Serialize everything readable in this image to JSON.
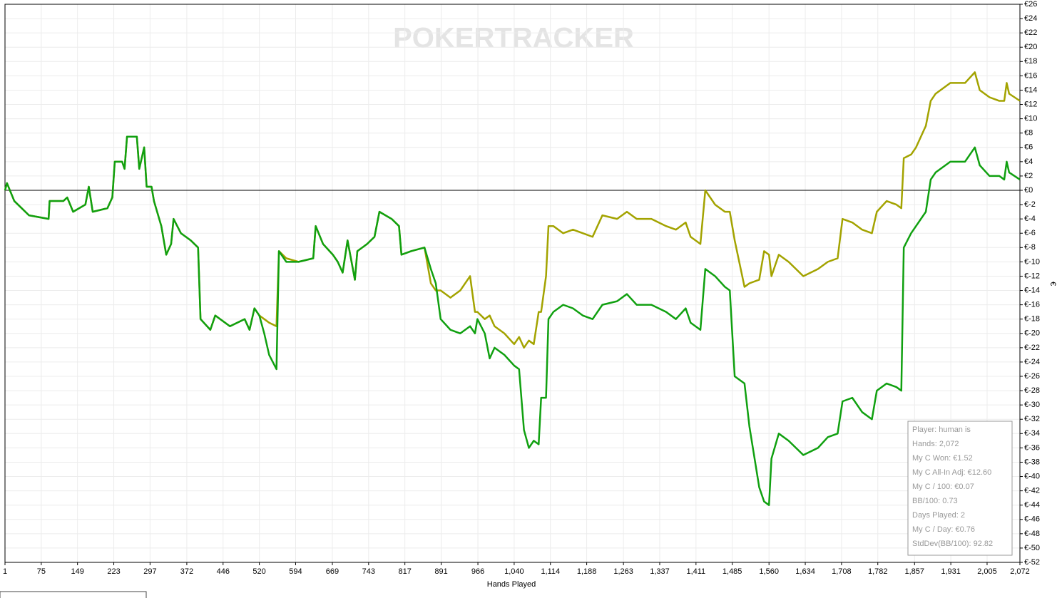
{
  "chart_data": {
    "type": "line",
    "watermark": "POKERTRACKER",
    "x_label": "Hands Played",
    "y_label": "€",
    "grid": true,
    "xlim": [
      1,
      2072
    ],
    "ylim": [
      -52,
      26
    ],
    "x": [
      1,
      5,
      20,
      50,
      90,
      92,
      120,
      128,
      140,
      165,
      172,
      180,
      210,
      220,
      225,
      240,
      245,
      250,
      270,
      275,
      285,
      290,
      300,
      305,
      320,
      330,
      340,
      345,
      360,
      380,
      395,
      400,
      420,
      430,
      460,
      490,
      500,
      510,
      520,
      530,
      540,
      555,
      560,
      575,
      600,
      630,
      635,
      650,
      670,
      680,
      690,
      700,
      715,
      720,
      740,
      755,
      765,
      790,
      805,
      810,
      830,
      857,
      870,
      880,
      890,
      910,
      930,
      950,
      960,
      965,
      980,
      990,
      1000,
      1020,
      1040,
      1050,
      1060,
      1070,
      1080,
      1090,
      1095,
      1105,
      1110,
      1120,
      1140,
      1160,
      1180,
      1200,
      1220,
      1250,
      1270,
      1290,
      1320,
      1350,
      1370,
      1390,
      1400,
      1420,
      1430,
      1450,
      1470,
      1480,
      1490,
      1510,
      1520,
      1540,
      1550,
      1560,
      1565,
      1580,
      1600,
      1630,
      1660,
      1680,
      1700,
      1710,
      1730,
      1750,
      1770,
      1780,
      1800,
      1820,
      1830,
      1835,
      1850,
      1860,
      1880,
      1890,
      1900,
      1930,
      1960,
      1980,
      1990,
      2010,
      2030,
      2040,
      2045,
      2050,
      2072
    ],
    "series": [
      {
        "color": "#a3a300",
        "values": [
          0,
          1,
          -1.5,
          -3.5,
          -4,
          -1.5,
          -1.5,
          -1,
          -3,
          -2,
          0.5,
          -3,
          -2.5,
          -1,
          4,
          4,
          3,
          7.5,
          7.5,
          3,
          6,
          0.5,
          0.5,
          -1.5,
          -5,
          -9,
          -7.5,
          -4,
          -6,
          -7,
          -8,
          -18,
          -19.5,
          -17.5,
          -19,
          -18,
          -19.5,
          -16.5,
          -17.5,
          -18,
          -18.5,
          -19,
          -8.5,
          -9.5,
          -10,
          -9.5,
          -5,
          -7.5,
          -9,
          -10,
          -11.5,
          -7,
          -12.5,
          -8.5,
          -7.5,
          -6.5,
          -3,
          -4,
          -5,
          -9,
          -8.5,
          -8,
          -13,
          -14,
          -14,
          -15,
          -14,
          -12,
          -17,
          -17,
          -18,
          -17.5,
          -19,
          -20,
          -21.5,
          -20.5,
          -22,
          -21,
          -21.5,
          -17,
          -17,
          -12,
          -5,
          -5,
          -6,
          -5.5,
          -6,
          -6.5,
          -3.5,
          -4,
          -3,
          -4,
          -4,
          -5,
          -5.5,
          -4.5,
          -6.5,
          -7.5,
          0,
          -2,
          -3,
          -3,
          -7,
          -13.5,
          -13,
          -12.5,
          -8.5,
          -9,
          -12,
          -9,
          -10,
          -12,
          -11,
          -10,
          -9.5,
          -4,
          -4.5,
          -5.5,
          -6,
          -3,
          -1.5,
          -2,
          -2.5,
          4.5,
          5,
          6,
          9,
          12.5,
          13.5,
          15,
          15,
          16.5,
          14,
          13,
          12.5,
          12.5,
          15,
          13.5,
          12.5
        ]
      },
      {
        "color": "#10a010",
        "values": [
          0,
          1,
          -1.5,
          -3.5,
          -4,
          -1.5,
          -1.5,
          -1,
          -3,
          -2,
          0.5,
          -3,
          -2.5,
          -1,
          4,
          4,
          3,
          7.5,
          7.5,
          3,
          6,
          0.5,
          0.5,
          -1.5,
          -5,
          -9,
          -7.5,
          -4,
          -6,
          -7,
          -8,
          -18,
          -19.5,
          -17.5,
          -19,
          -18,
          -19.5,
          -16.5,
          -17.5,
          -20,
          -23,
          -25,
          -8.5,
          -10,
          -10,
          -9.5,
          -5,
          -7.5,
          -9,
          -10,
          -11.5,
          -7,
          -12.5,
          -8.5,
          -7.5,
          -6.5,
          -3,
          -4,
          -5,
          -9,
          -8.5,
          -8,
          -11,
          -13,
          -18,
          -19.5,
          -20,
          -19,
          -20,
          -18,
          -20,
          -23.5,
          -22,
          -23,
          -24.5,
          -25,
          -33.5,
          -36,
          -35,
          -35.5,
          -29,
          -29,
          -18,
          -17,
          -16,
          -16.5,
          -17.5,
          -18,
          -16,
          -15.5,
          -14.5,
          -16,
          -16,
          -17,
          -18,
          -16.5,
          -18.5,
          -19.5,
          -11,
          -12,
          -13.5,
          -14,
          -26,
          -27,
          -33,
          -41.5,
          -43.5,
          -44,
          -37.5,
          -34,
          -35,
          -37,
          -36,
          -34.5,
          -34,
          -29.5,
          -29,
          -31,
          -32,
          -28,
          -27,
          -27.5,
          -28,
          -8,
          -6,
          -5,
          -3,
          1.5,
          2.5,
          4,
          4,
          6,
          3.5,
          2,
          2,
          1.5,
          4,
          2.5,
          1.5
        ]
      }
    ],
    "xticks": [
      1,
      75,
      149,
      223,
      297,
      372,
      446,
      520,
      594,
      669,
      743,
      817,
      891,
      966,
      {
        "value": 1040,
        "label": "1,040"
      },
      {
        "value": 1114,
        "label": "1,114"
      },
      {
        "value": 1188,
        "label": "1,188"
      },
      {
        "value": 1263,
        "label": "1,263"
      },
      {
        "value": 1337,
        "label": "1,337"
      },
      {
        "value": 1411,
        "label": "1,411"
      },
      {
        "value": 1485,
        "label": "1,485"
      },
      {
        "value": 1560,
        "label": "1,560"
      },
      {
        "value": 1634,
        "label": "1,634"
      },
      {
        "value": 1708,
        "label": "1,708"
      },
      {
        "value": 1782,
        "label": "1,782"
      },
      {
        "value": 1857,
        "label": "1,857"
      },
      {
        "value": 1931,
        "label": "1,931"
      },
      {
        "value": 2005,
        "label": "2,005"
      },
      {
        "value": 2072,
        "label": "2,072"
      }
    ],
    "yticks": [
      {
        "value": 26,
        "label": "€26"
      },
      {
        "value": 24,
        "label": "€24"
      },
      {
        "value": 22,
        "label": "€22"
      },
      {
        "value": 20,
        "label": "€20"
      },
      {
        "value": 18,
        "label": "€18"
      },
      {
        "value": 16,
        "label": "€16"
      },
      {
        "value": 14,
        "label": "€14"
      },
      {
        "value": 12,
        "label": "€12"
      },
      {
        "value": 10,
        "label": "€10"
      },
      {
        "value": 8,
        "label": "€8"
      },
      {
        "value": 6,
        "label": "€6"
      },
      {
        "value": 4,
        "label": "€4"
      },
      {
        "value": 2,
        "label": "€2"
      },
      {
        "value": 0,
        "label": "€0"
      },
      {
        "value": -2,
        "label": "€-2"
      },
      {
        "value": -4,
        "label": "€-4"
      },
      {
        "value": -6,
        "label": "€-6"
      },
      {
        "value": -8,
        "label": "€-8"
      },
      {
        "value": -10,
        "label": "€-10"
      },
      {
        "value": -12,
        "label": "€-12"
      },
      {
        "value": -14,
        "label": "€-14"
      },
      {
        "value": -16,
        "label": "€-16"
      },
      {
        "value": -18,
        "label": "€-18"
      },
      {
        "value": -20,
        "label": "€-20"
      },
      {
        "value": -22,
        "label": "€-22"
      },
      {
        "value": -24,
        "label": "€-24"
      },
      {
        "value": -26,
        "label": "€-26"
      },
      {
        "value": -28,
        "label": "€-28"
      },
      {
        "value": -30,
        "label": "€-30"
      },
      {
        "value": -32,
        "label": "€-32"
      },
      {
        "value": -34,
        "label": "€-34"
      },
      {
        "value": -36,
        "label": "€-36"
      },
      {
        "value": -38,
        "label": "€-38"
      },
      {
        "value": -40,
        "label": "€-40"
      },
      {
        "value": -42,
        "label": "€-42"
      },
      {
        "value": -44,
        "label": "€-44"
      },
      {
        "value": -46,
        "label": "€-46"
      },
      {
        "value": -48,
        "label": "€-48"
      },
      {
        "value": -50,
        "label": "€-50"
      },
      {
        "value": -52,
        "label": "€-52"
      }
    ],
    "annotations": [
      "Player: human is",
      "Hands: 2,072",
      "My C Won: €1.52",
      "My C All-In Adj: €12.60",
      "My C / 100: €0.07",
      "BB/100: 0.73",
      "Days Played: 2",
      "My C / Day: €0.76",
      "StdDev(BB/100): 92.82"
    ]
  }
}
